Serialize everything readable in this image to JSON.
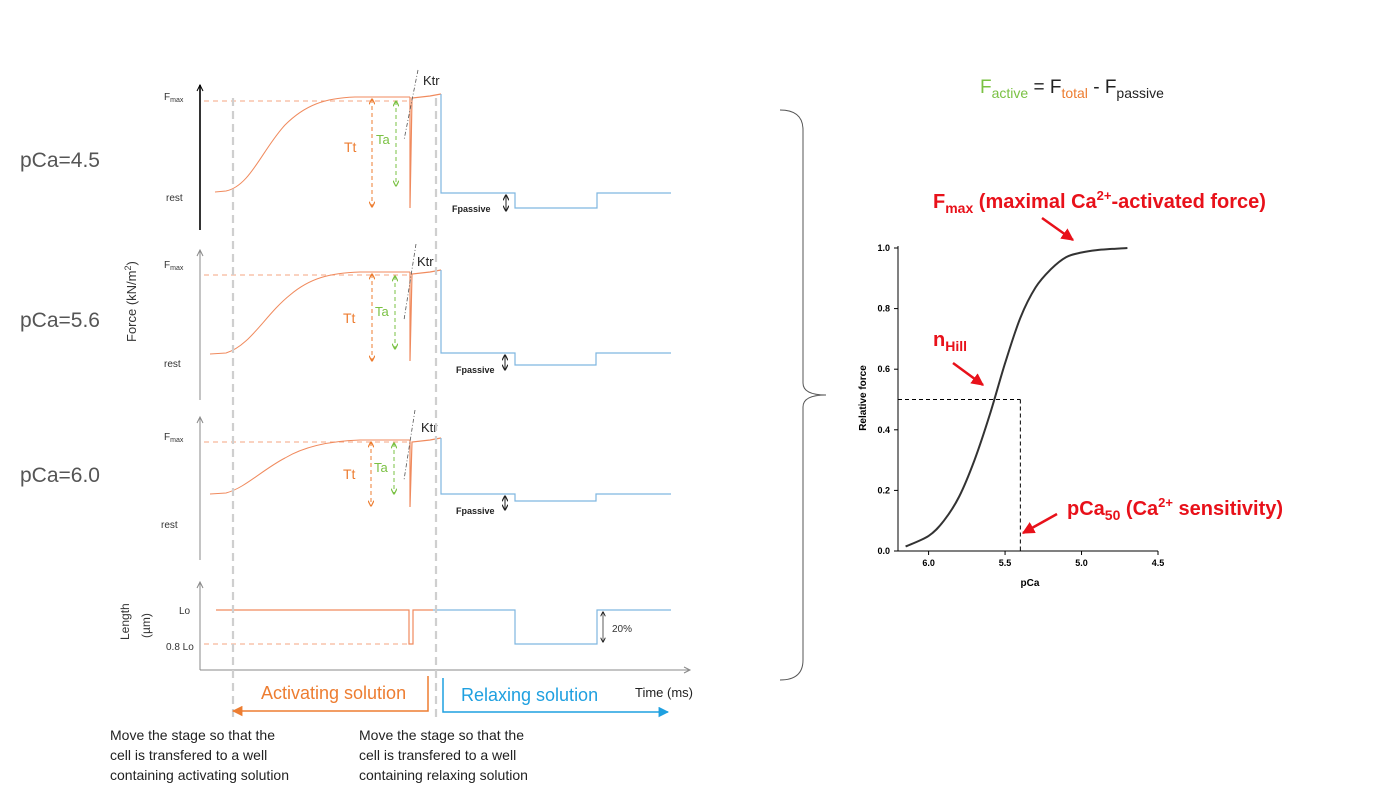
{
  "panels": [
    {
      "pca_label": "pCa=4.5",
      "fmax": "F",
      "fmax_sub": "max",
      "rest": "rest",
      "tt": "Tt",
      "ta": "Ta",
      "ktr": "Ktr",
      "fpassive": "Fpassive"
    },
    {
      "pca_label": "pCa=5.6",
      "fmax": "F",
      "fmax_sub": "max",
      "rest": "rest",
      "tt": "Tt",
      "ta": "Ta",
      "ktr": "Ktr",
      "fpassive": "Fpassive"
    },
    {
      "pca_label": "pCa=6.0",
      "fmax": "F",
      "fmax_sub": "max",
      "rest": "rest",
      "tt": "Tt",
      "ta": "Ta",
      "ktr": "Ktr",
      "fpassive": "Fpassive"
    }
  ],
  "force_axis_label": "Force (kN/m",
  "force_axis_sup": "2",
  "force_axis_close": ")",
  "length_axis_label_1": "Length",
  "length_axis_label_2": "(µm)",
  "length_lo": "Lo",
  "length_08lo": "0.8 Lo",
  "length_pct": "20%",
  "time_axis_label": "Time (ms)",
  "activating_label": "Activating solution",
  "relaxing_label": "Relaxing solution",
  "note_left": [
    "Move the stage so that the",
    "cell is transfered to a well",
    "containing activating solution"
  ],
  "note_right": [
    "Move the stage so that the",
    "cell is transfered to a well",
    "containing relaxing solution"
  ],
  "equation": {
    "f1": "F",
    "f1_sub": "active",
    "eq": " = ",
    "f2": "F",
    "f2_sub": "total",
    "minus": " - ",
    "f3": "F",
    "f3_sub": "passive"
  },
  "colors": {
    "active": "#7ac143",
    "total": "#ed7d31",
    "relax": "#1fa0e0",
    "trace_orange": "#f4a582",
    "trace_blue": "#7fb6e0",
    "red": "#e8111a"
  },
  "annotations": {
    "fmax_a": "F",
    "fmax_sub": "max",
    "fmax_b": " (maximal Ca",
    "fmax_sup": "2+",
    "fmax_c": "-activated force)",
    "nhill_a": "n",
    "nhill_sub": "Hill",
    "pca50_a": "pCa",
    "pca50_sub": "50",
    "pca50_b": " (Ca",
    "pca50_sup": "2+",
    "pca50_c": " sensitivity)"
  },
  "chart_data": {
    "type": "line",
    "title": "",
    "xlabel": "pCa",
    "ylabel": "Relative force",
    "x_reversed": true,
    "xlim": [
      6.2,
      4.5
    ],
    "ylim": [
      0.0,
      1.0
    ],
    "x_ticks": [
      "6.0",
      "5.5",
      "5.0",
      "4.5"
    ],
    "y_ticks": [
      "0.0",
      "0.2",
      "0.4",
      "0.6",
      "0.8",
      "1.0"
    ],
    "series": [
      {
        "x": [
          6.15,
          6.0,
          5.9,
          5.8,
          5.7,
          5.6,
          5.5,
          5.4,
          5.3,
          5.2,
          5.1,
          5.0,
          4.9,
          4.8,
          4.7
        ],
        "y": [
          0.015,
          0.05,
          0.1,
          0.18,
          0.3,
          0.45,
          0.62,
          0.77,
          0.87,
          0.93,
          0.97,
          0.985,
          0.993,
          0.997,
          1.0
        ]
      }
    ],
    "reference": {
      "x": 5.4,
      "y": 0.5
    }
  }
}
